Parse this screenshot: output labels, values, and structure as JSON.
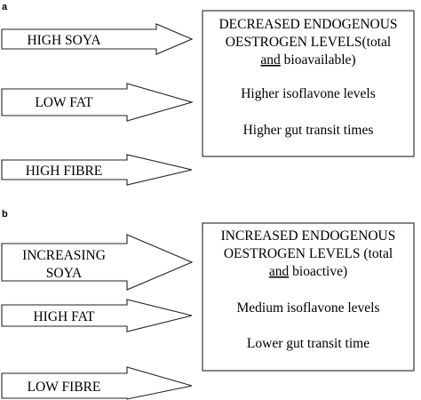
{
  "panels": {
    "a": {
      "label": "a",
      "inputs": [
        {
          "text": [
            "HIGH SOYA"
          ],
          "icon": "right-arrow"
        },
        {
          "text": [
            "LOW FAT"
          ],
          "icon": "right-arrow"
        },
        {
          "text": [
            "HIGH FIBRE"
          ],
          "icon": "right-arrow"
        }
      ],
      "result": {
        "line1": "DECREASED ENDOGENOUS",
        "line2": "OESTROGEN LEVELS(total",
        "line3_underlined": "and",
        "line3_rest": " bioavailable)",
        "line4": "Higher isoflavone levels",
        "line5": "Higher gut transit times"
      }
    },
    "b": {
      "label": "b",
      "inputs": [
        {
          "text": [
            "INCREASING",
            "SOYA"
          ],
          "icon": "right-arrow"
        },
        {
          "text": [
            "HIGH FAT"
          ],
          "icon": "right-arrow"
        },
        {
          "text": [
            "LOW FIBRE"
          ],
          "icon": "right-arrow"
        }
      ],
      "result": {
        "line1": "INCREASED ENDOGENOUS",
        "line2": "OESTROGEN LEVELS (total",
        "line3_underlined": "and",
        "line3_rest": " bioactive)",
        "line4": "Medium isoflavone levels",
        "line5": "Lower gut transit time"
      }
    }
  }
}
